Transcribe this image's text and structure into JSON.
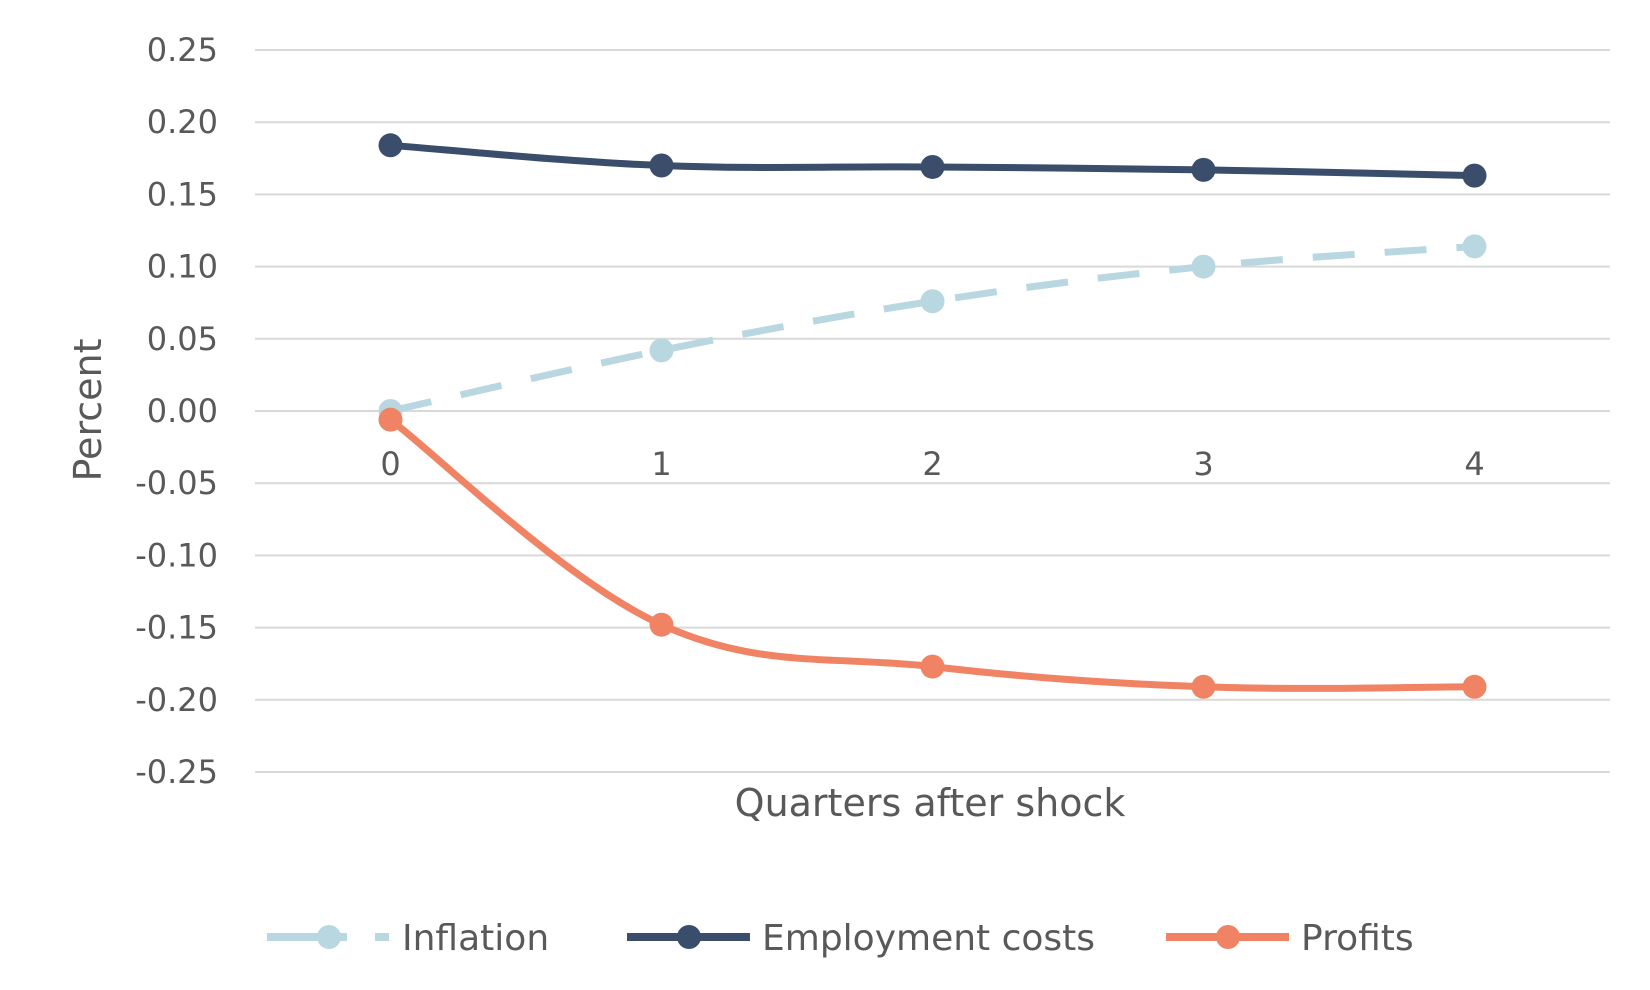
{
  "chart_data": {
    "type": "line",
    "xlabel": "Quarters after shock",
    "ylabel": "Percent",
    "categories": [
      "0",
      "1",
      "2",
      "3",
      "4"
    ],
    "ylim": [
      -0.25,
      0.25
    ],
    "yticks": [
      "0.25",
      "0.20",
      "0.15",
      "0.10",
      "0.05",
      "0.00",
      "-0.05",
      "-0.10",
      "-0.15",
      "-0.20",
      "-0.25"
    ],
    "grid": true,
    "legend_position": "bottom",
    "series": [
      {
        "name": "Inflation",
        "values": [
          0.0,
          0.042,
          0.076,
          0.1,
          0.114
        ],
        "color": "#b9d7e0",
        "dashed": true
      },
      {
        "name": "Employment costs",
        "values": [
          0.184,
          0.17,
          0.169,
          0.167,
          0.163
        ],
        "color": "#3a4d6b",
        "dashed": false
      },
      {
        "name": "Profits",
        "values": [
          -0.006,
          -0.148,
          -0.177,
          -0.191,
          -0.191
        ],
        "color": "#f08363",
        "dashed": false
      }
    ]
  }
}
